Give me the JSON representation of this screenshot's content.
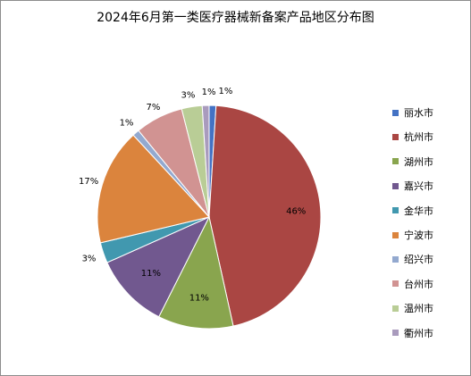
{
  "chart_data": {
    "type": "pie",
    "title": "2024年6月第一类医疗器械新备案产品地区分布图",
    "categories": [
      "丽水市",
      "杭州市",
      "湖州市",
      "嘉兴市",
      "金华市",
      "宁波市",
      "绍兴市",
      "台州市",
      "温州市",
      "衢州市"
    ],
    "values": [
      1,
      46,
      11,
      11,
      3,
      17,
      1,
      7,
      3,
      1
    ],
    "labels": [
      "1%",
      "46%",
      "11%",
      "11%",
      "3%",
      "17%",
      "1%",
      "7%",
      "3%",
      "1%"
    ],
    "colors": [
      "#4472C4",
      "#AA4643",
      "#89A54E",
      "#71588F",
      "#4198AF",
      "#DB843D",
      "#93A9CF",
      "#D19392",
      "#B9CD96",
      "#A99BBD"
    ],
    "legend_position": "right"
  }
}
